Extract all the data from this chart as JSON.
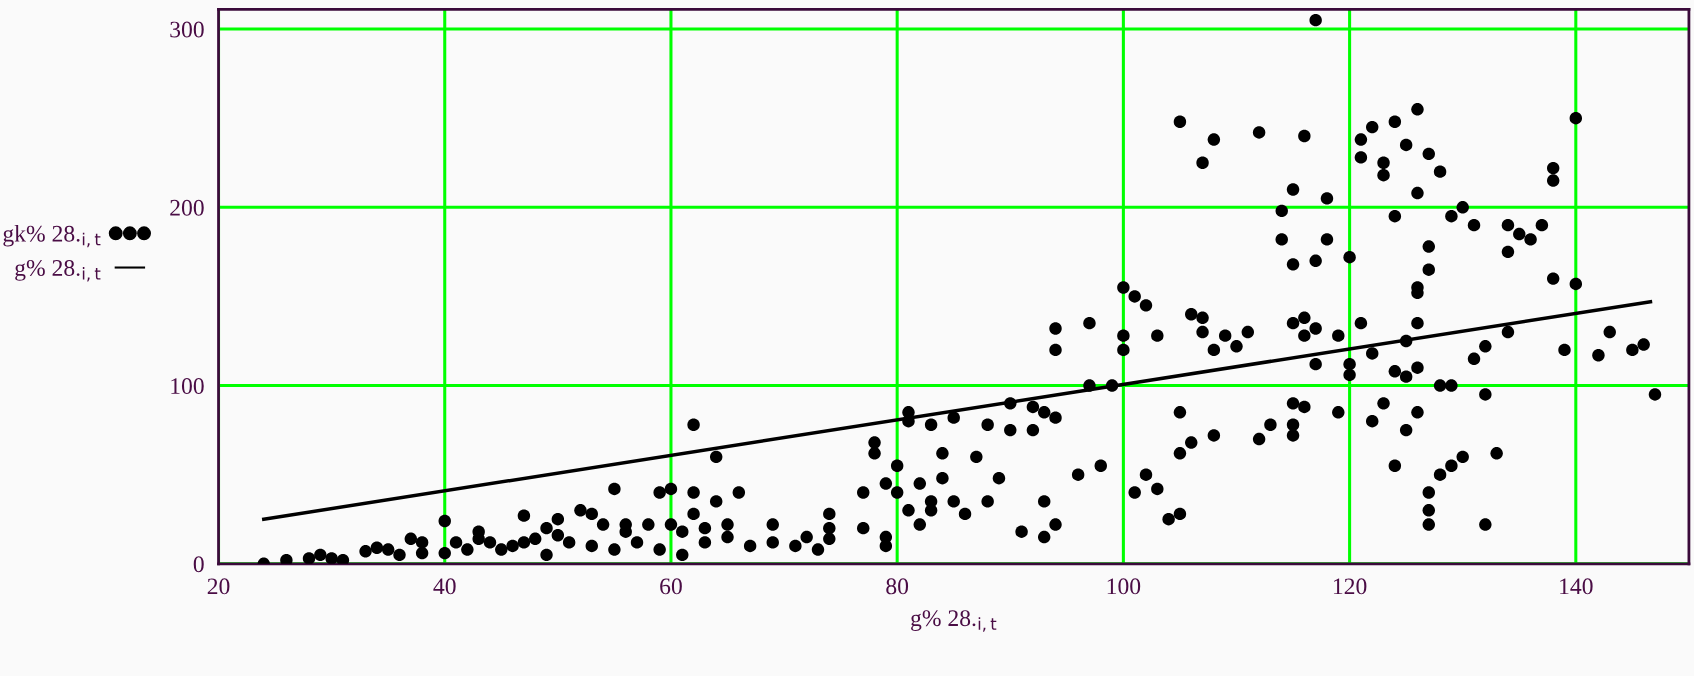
{
  "chart_data": {
    "type": "scatter",
    "xlabel": "g% 28.$_{i,t}$",
    "xlim": [
      20,
      150
    ],
    "xticks": [
      20,
      40,
      60,
      80,
      100,
      120,
      140
    ],
    "ylim": [
      0,
      311
    ],
    "yticks": [
      0,
      100,
      200,
      300
    ],
    "grid": true,
    "legend": "left",
    "series": [
      {
        "name": "gk% 28.$_{i,t}$",
        "marker": "circle",
        "color": "#000000",
        "x": [
          24,
          26,
          28,
          29,
          30,
          31,
          33,
          34,
          35,
          36,
          37,
          38,
          38,
          40,
          40,
          41,
          42,
          43,
          43,
          44,
          45,
          46,
          47,
          47,
          48,
          49,
          49,
          50,
          50,
          51,
          52,
          53,
          53,
          54,
          55,
          55,
          56,
          56,
          57,
          58,
          59,
          59,
          60,
          60,
          61,
          61,
          62,
          62,
          62,
          63,
          63,
          64,
          64,
          65,
          65,
          66,
          67,
          69,
          69,
          71,
          72,
          73,
          74,
          74,
          74,
          77,
          77,
          78,
          78,
          79,
          79,
          79,
          80,
          80,
          81,
          81,
          81,
          82,
          82,
          83,
          83,
          83,
          84,
          84,
          85,
          85,
          86,
          87,
          88,
          88,
          89,
          90,
          90,
          91,
          92,
          92,
          93,
          93,
          93,
          94,
          94,
          94,
          94,
          96,
          97,
          97,
          98,
          99,
          100,
          100,
          100,
          101,
          101,
          102,
          102,
          103,
          103,
          104,
          105,
          105,
          105,
          105,
          106,
          106,
          107,
          107,
          107,
          108,
          108,
          108,
          109,
          110,
          111,
          112,
          112,
          113,
          114,
          114,
          115,
          115,
          115,
          115,
          115,
          115,
          116,
          116,
          116,
          116,
          117,
          117,
          117,
          117,
          118,
          118,
          119,
          119,
          120,
          120,
          120,
          121,
          121,
          121,
          122,
          122,
          122,
          123,
          123,
          123,
          124,
          124,
          124,
          124,
          125,
          125,
          125,
          125,
          126,
          126,
          126,
          126,
          126,
          126,
          126,
          127,
          127,
          127,
          127,
          127,
          127,
          128,
          128,
          128,
          129,
          129,
          129,
          130,
          130,
          131,
          131,
          132,
          132,
          132,
          133,
          134,
          134,
          134,
          135,
          136,
          137,
          138,
          138,
          138,
          139,
          140,
          140,
          142,
          143,
          145,
          146,
          147
        ],
        "values": [
          0,
          2,
          3,
          5,
          3,
          2,
          7,
          9,
          8,
          5,
          14,
          12,
          6,
          6,
          24,
          12,
          8,
          18,
          14,
          12,
          8,
          10,
          27,
          12,
          14,
          20,
          5,
          25,
          16,
          12,
          30,
          28,
          10,
          22,
          42,
          8,
          18,
          22,
          12,
          22,
          40,
          8,
          42,
          22,
          18,
          5,
          78,
          40,
          28,
          20,
          12,
          60,
          35,
          22,
          15,
          40,
          10,
          22,
          12,
          10,
          15,
          8,
          28,
          20,
          14,
          40,
          20,
          68,
          62,
          45,
          15,
          10,
          40,
          55,
          85,
          80,
          30,
          45,
          22,
          78,
          35,
          30,
          48,
          62,
          82,
          35,
          28,
          60,
          78,
          35,
          48,
          90,
          75,
          18,
          88,
          75,
          85,
          35,
          15,
          82,
          22,
          132,
          120,
          50,
          135,
          100,
          55,
          100,
          120,
          128,
          155,
          40,
          150,
          50,
          145,
          128,
          42,
          25,
          28,
          62,
          85,
          248,
          68,
          140,
          225,
          130,
          138,
          238,
          120,
          72,
          128,
          122,
          130,
          70,
          242,
          78,
          182,
          198,
          168,
          90,
          78,
          72,
          210,
          135,
          138,
          128,
          88,
          240,
          305,
          132,
          170,
          112,
          182,
          205,
          85,
          128,
          172,
          112,
          106,
          135,
          238,
          228,
          245,
          118,
          80,
          218,
          225,
          90,
          248,
          195,
          55,
          108,
          125,
          235,
          105,
          75,
          255,
          208,
          155,
          152,
          110,
          135,
          85,
          30,
          22,
          40,
          178,
          165,
          230,
          220,
          100,
          50,
          55,
          195,
          100,
          60,
          200,
          115,
          190,
          122,
          95,
          22,
          62,
          175,
          190,
          130,
          185,
          182,
          190,
          160,
          222,
          215,
          120,
          250,
          157,
          117,
          130,
          120,
          123,
          95
        ]
      },
      {
        "name": "g% 28.$_{i,t}$",
        "type": "line",
        "marker": "none",
        "line_style": "solid",
        "color": "#000000",
        "x": [
          24,
          146.6
        ],
        "values": [
          25,
          147
        ]
      }
    ]
  }
}
